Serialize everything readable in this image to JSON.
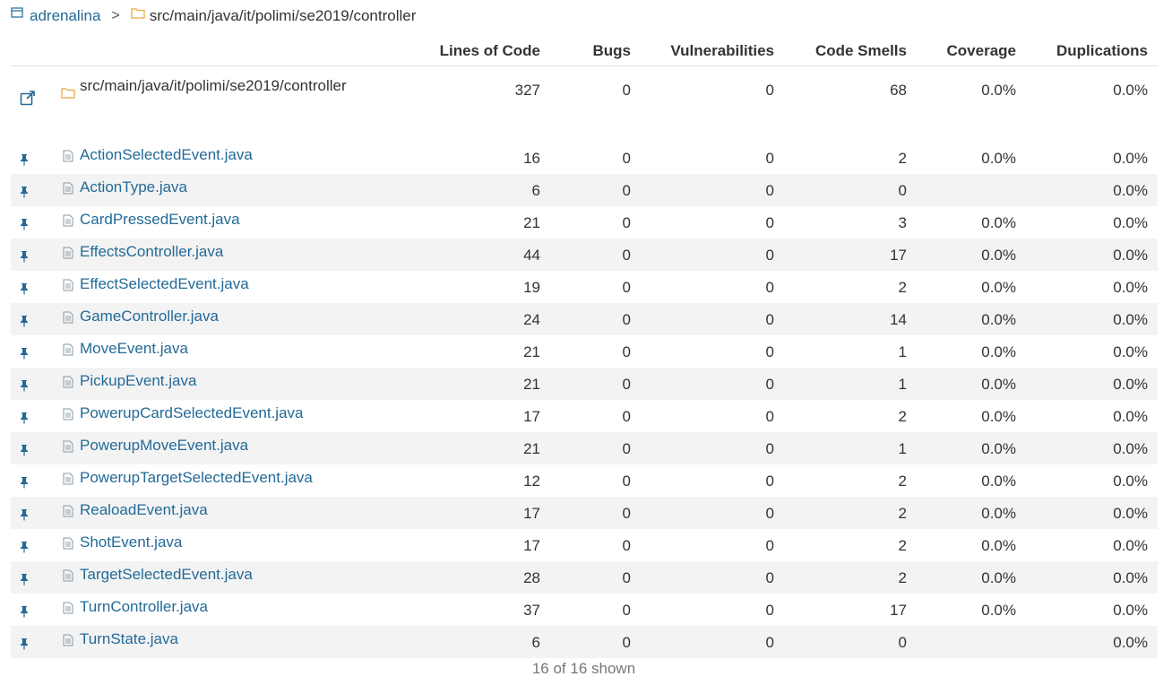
{
  "breadcrumb": {
    "project": "adrenalina",
    "separator": ">",
    "path": "src/main/java/it/polimi/se2019/controller"
  },
  "columns": {
    "loc": "Lines of Code",
    "bugs": "Bugs",
    "vulnerabilities": "Vulnerabilities",
    "code_smells": "Code Smells",
    "coverage": "Coverage",
    "duplications": "Duplications"
  },
  "directory": {
    "name": "src/main/java/it/polimi/se2019/controller",
    "loc": "327",
    "bugs": "0",
    "vulnerabilities": "0",
    "code_smells": "68",
    "coverage": "0.0%",
    "duplications": "0.0%"
  },
  "files": [
    {
      "name": "ActionSelectedEvent.java",
      "loc": "16",
      "bugs": "0",
      "vulnerabilities": "0",
      "code_smells": "2",
      "coverage": "0.0%",
      "duplications": "0.0%"
    },
    {
      "name": "ActionType.java",
      "loc": "6",
      "bugs": "0",
      "vulnerabilities": "0",
      "code_smells": "0",
      "coverage": "",
      "duplications": "0.0%"
    },
    {
      "name": "CardPressedEvent.java",
      "loc": "21",
      "bugs": "0",
      "vulnerabilities": "0",
      "code_smells": "3",
      "coverage": "0.0%",
      "duplications": "0.0%"
    },
    {
      "name": "EffectsController.java",
      "loc": "44",
      "bugs": "0",
      "vulnerabilities": "0",
      "code_smells": "17",
      "coverage": "0.0%",
      "duplications": "0.0%"
    },
    {
      "name": "EffectSelectedEvent.java",
      "loc": "19",
      "bugs": "0",
      "vulnerabilities": "0",
      "code_smells": "2",
      "coverage": "0.0%",
      "duplications": "0.0%"
    },
    {
      "name": "GameController.java",
      "loc": "24",
      "bugs": "0",
      "vulnerabilities": "0",
      "code_smells": "14",
      "coverage": "0.0%",
      "duplications": "0.0%"
    },
    {
      "name": "MoveEvent.java",
      "loc": "21",
      "bugs": "0",
      "vulnerabilities": "0",
      "code_smells": "1",
      "coverage": "0.0%",
      "duplications": "0.0%"
    },
    {
      "name": "PickupEvent.java",
      "loc": "21",
      "bugs": "0",
      "vulnerabilities": "0",
      "code_smells": "1",
      "coverage": "0.0%",
      "duplications": "0.0%"
    },
    {
      "name": "PowerupCardSelectedEvent.java",
      "loc": "17",
      "bugs": "0",
      "vulnerabilities": "0",
      "code_smells": "2",
      "coverage": "0.0%",
      "duplications": "0.0%"
    },
    {
      "name": "PowerupMoveEvent.java",
      "loc": "21",
      "bugs": "0",
      "vulnerabilities": "0",
      "code_smells": "1",
      "coverage": "0.0%",
      "duplications": "0.0%"
    },
    {
      "name": "PowerupTargetSelectedEvent.java",
      "loc": "12",
      "bugs": "0",
      "vulnerabilities": "0",
      "code_smells": "2",
      "coverage": "0.0%",
      "duplications": "0.0%"
    },
    {
      "name": "RealoadEvent.java",
      "loc": "17",
      "bugs": "0",
      "vulnerabilities": "0",
      "code_smells": "2",
      "coverage": "0.0%",
      "duplications": "0.0%"
    },
    {
      "name": "ShotEvent.java",
      "loc": "17",
      "bugs": "0",
      "vulnerabilities": "0",
      "code_smells": "2",
      "coverage": "0.0%",
      "duplications": "0.0%"
    },
    {
      "name": "TargetSelectedEvent.java",
      "loc": "28",
      "bugs": "0",
      "vulnerabilities": "0",
      "code_smells": "2",
      "coverage": "0.0%",
      "duplications": "0.0%"
    },
    {
      "name": "TurnController.java",
      "loc": "37",
      "bugs": "0",
      "vulnerabilities": "0",
      "code_smells": "17",
      "coverage": "0.0%",
      "duplications": "0.0%"
    },
    {
      "name": "TurnState.java",
      "loc": "6",
      "bugs": "0",
      "vulnerabilities": "0",
      "code_smells": "0",
      "coverage": "",
      "duplications": "0.0%"
    }
  ],
  "footer": "16 of 16 shown",
  "colors": {
    "link": "#236a97",
    "folder": "#e8a33d",
    "text": "#333333",
    "row_alt": "#f3f3f3"
  },
  "icons": {
    "project": "project-icon",
    "folder": "folder-icon",
    "file": "file-icon",
    "pin": "pin-icon",
    "open_link": "external-link-icon"
  }
}
